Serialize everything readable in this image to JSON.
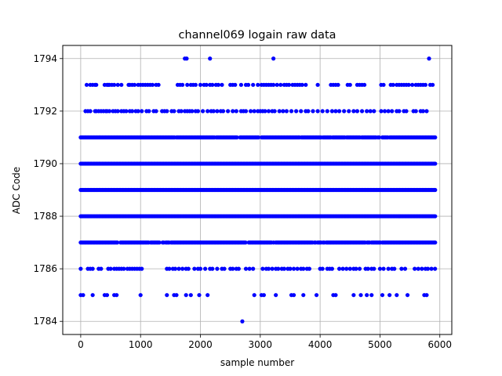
{
  "chart_data": {
    "type": "scatter",
    "title": "channel069 logain raw data",
    "xlabel": "sample number",
    "ylabel": "ADC Code",
    "xlim": [
      -300,
      6200
    ],
    "ylim": [
      1783.5,
      1794.5
    ],
    "x_ticks": [
      0,
      1000,
      2000,
      3000,
      4000,
      5000,
      6000
    ],
    "y_ticks": [
      1784,
      1786,
      1788,
      1790,
      1792,
      1794
    ],
    "grid": true,
    "marker_color": "#0000ff",
    "series": [
      {
        "dense_rows": [
          {
            "y": 1791,
            "x_start": 0,
            "x_end": 5930,
            "density": 0.95
          },
          {
            "y": 1790,
            "x_start": 0,
            "x_end": 5930,
            "density": 1.0
          },
          {
            "y": 1789,
            "x_start": 0,
            "x_end": 5930,
            "density": 1.0
          },
          {
            "y": 1788,
            "x_start": 0,
            "x_end": 5930,
            "density": 1.0
          },
          {
            "y": 1787,
            "x_start": 0,
            "x_end": 5930,
            "density": 0.95
          }
        ],
        "sparse_points": {
          "1794": [
            1740,
            1770,
            2160,
            3220,
            5820
          ],
          "1793": [
            100,
            160,
            200,
            240,
            260,
            400,
            440,
            460,
            480,
            520,
            560,
            620,
            680,
            800,
            820,
            860,
            900,
            960,
            1000,
            1040,
            1080,
            1120,
            1160,
            1200,
            1260,
            1300,
            1620,
            1660,
            1700,
            1780,
            1840,
            1880,
            1920,
            2000,
            2060,
            2100,
            2160,
            2200,
            2260,
            2300,
            2360,
            2500,
            2540,
            2580,
            2680,
            2760,
            2800,
            2880,
            2960,
            3020,
            3060,
            3100,
            3140,
            3180,
            3220,
            3280,
            3340,
            3400,
            3440,
            3480,
            3540,
            3580,
            3620,
            3660,
            3700,
            3760,
            3960,
            4180,
            4220,
            4260,
            4300,
            4460,
            4500,
            4620,
            4660,
            4700,
            4740,
            5020,
            5060,
            5180,
            5220,
            5280,
            5320,
            5360,
            5400,
            5440,
            5480,
            5540,
            5600,
            5640,
            5680,
            5720,
            5760,
            5840,
            5880
          ],
          "1792": [
            80,
            120,
            160,
            240,
            260,
            300,
            340,
            380,
            420,
            440,
            480,
            540,
            580,
            620,
            680,
            720,
            760,
            820,
            860,
            920,
            960,
            1020,
            1100,
            1140,
            1220,
            1260,
            1360,
            1400,
            1440,
            1520,
            1560,
            1640,
            1680,
            1740,
            1780,
            1820,
            1860,
            1920,
            1960,
            2040,
            2120,
            2180,
            2220,
            2280,
            2340,
            2380,
            2460,
            2540,
            2600,
            2680,
            2720,
            2760,
            2840,
            2900,
            2960,
            3000,
            3040,
            3080,
            3140,
            3200,
            3240,
            3320,
            3380,
            3440,
            3520,
            3600,
            3680,
            3760,
            3800,
            3880,
            3960,
            4040,
            4120,
            4200,
            4260,
            4320,
            4400,
            4480,
            4560,
            4620,
            4700,
            4780,
            4840,
            4900,
            5020,
            5080,
            5140,
            5200,
            5280,
            5320,
            5400,
            5440,
            5560,
            5600,
            5680,
            5720,
            5780
          ],
          "1786": [
            0,
            120,
            160,
            200,
            300,
            340,
            460,
            500,
            560,
            600,
            640,
            680,
            720,
            780,
            820,
            860,
            900,
            940,
            980,
            1020,
            1440,
            1480,
            1540,
            1580,
            1640,
            1700,
            1760,
            1800,
            1900,
            1960,
            2000,
            2080,
            2160,
            2200,
            2280,
            2360,
            2400,
            2500,
            2540,
            2600,
            2640,
            2760,
            2820,
            2880,
            3040,
            3100,
            3140,
            3200,
            3260,
            3300,
            3360,
            3400,
            3460,
            3500,
            3560,
            3620,
            3680,
            3720,
            3780,
            3820,
            4000,
            4040,
            4120,
            4160,
            4200,
            4320,
            4380,
            4440,
            4500,
            4560,
            4600,
            4660,
            4760,
            4800,
            4860,
            4900,
            5000,
            5060,
            5140,
            5200,
            5240,
            5360,
            5420,
            5580,
            5640,
            5700,
            5760,
            5800,
            5860,
            5920
          ],
          "1785": [
            0,
            40,
            200,
            400,
            440,
            560,
            600,
            1000,
            1440,
            1560,
            1600,
            1760,
            1840,
            1980,
            2120,
            2900,
            3020,
            3060,
            3260,
            3520,
            3560,
            3720,
            3940,
            4220,
            4260,
            4560,
            4680,
            4780,
            4860,
            5040,
            5160,
            5280,
            5460,
            5740,
            5780
          ],
          "1784": [
            2700
          ]
        }
      }
    ]
  }
}
